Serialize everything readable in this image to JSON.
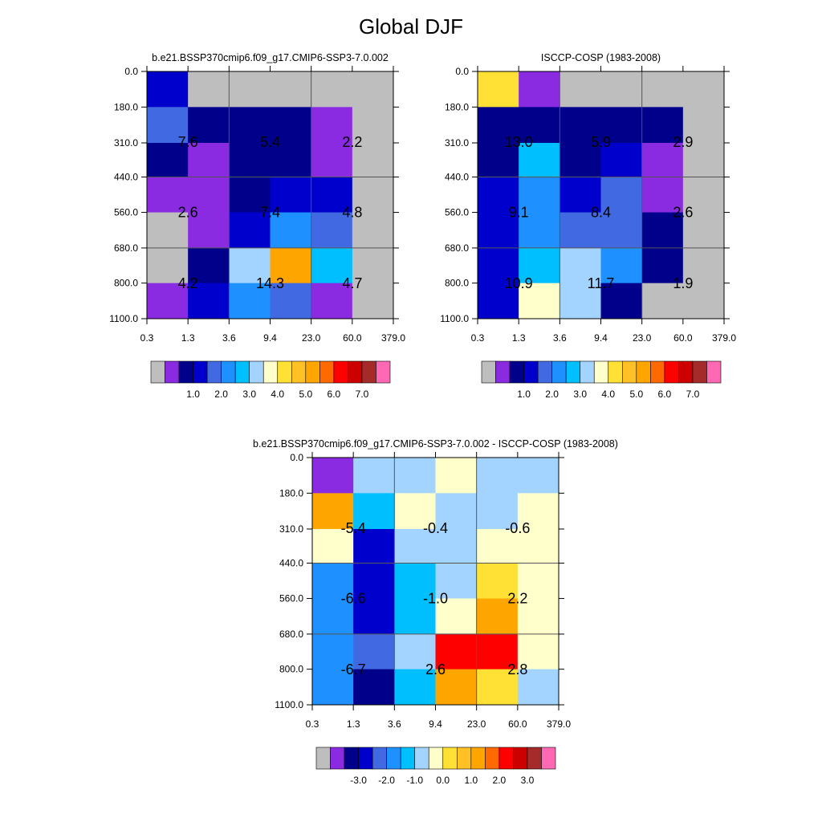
{
  "figure_title": "Global DJF",
  "chart_data": [
    {
      "type": "heatmap",
      "title": "b.e21.BSSP370cmip6.f09_g17.CMIP6-SSP3-7.0.002",
      "x_ticks": [
        "0.3",
        "1.3",
        "3.6",
        "9.4",
        "23.0",
        "60.0",
        "379.0"
      ],
      "y_ticks": [
        "0.0",
        "180.0",
        "310.0",
        "440.0",
        "560.0",
        "680.0",
        "800.0",
        "1100.0"
      ],
      "cells": [
        [
          "#0000cd",
          "#bebebe",
          "#bebebe",
          "#bebebe",
          "#bebebe",
          "#bebebe"
        ],
        [
          "#4169e1",
          "#00008b",
          "#00008b",
          "#00008b",
          "#8a2be2",
          "#bebebe"
        ],
        [
          "#00008b",
          "#8a2be2",
          "#00008b",
          "#00008b",
          "#8a2be2",
          "#bebebe"
        ],
        [
          "#8a2be2",
          "#8a2be2",
          "#00008b",
          "#0000cd",
          "#0000cd",
          "#bebebe"
        ],
        [
          "#bebebe",
          "#8a2be2",
          "#0000cd",
          "#1e90ff",
          "#4169e1",
          "#bebebe"
        ],
        [
          "#bebebe",
          "#00008b",
          "#a3d4ff",
          "#ffa500",
          "#00bfff",
          "#bebebe"
        ],
        [
          "#8a2be2",
          "#0000cd",
          "#1e90ff",
          "#4169e1",
          "#8a2be2",
          "#bebebe"
        ]
      ],
      "boxes": [
        {
          "x0": 0,
          "x1": 2,
          "y0": 1,
          "y1": 3,
          "label": "7.6"
        },
        {
          "x0": 2,
          "x1": 4,
          "y0": 1,
          "y1": 3,
          "label": "5.4"
        },
        {
          "x0": 4,
          "x1": 6,
          "y0": 1,
          "y1": 3,
          "label": "2.2"
        },
        {
          "x0": 0,
          "x1": 2,
          "y0": 3,
          "y1": 5,
          "label": "2.6"
        },
        {
          "x0": 2,
          "x1": 4,
          "y0": 3,
          "y1": 5,
          "label": "7.4"
        },
        {
          "x0": 4,
          "x1": 6,
          "y0": 3,
          "y1": 5,
          "label": "4.8"
        },
        {
          "x0": 0,
          "x1": 2,
          "y0": 5,
          "y1": 7,
          "label": "4.2"
        },
        {
          "x0": 2,
          "x1": 4,
          "y0": 5,
          "y1": 7,
          "label": "14.3"
        },
        {
          "x0": 4,
          "x1": 6,
          "y0": 5,
          "y1": 7,
          "label": "4.7"
        }
      ],
      "colorbar": {
        "colors": [
          "#bebebe",
          "#8a2be2",
          "#00008b",
          "#0000cd",
          "#4169e1",
          "#1e90ff",
          "#00bfff",
          "#a3d4ff",
          "#ffffcc",
          "#ffe135",
          "#ffc125",
          "#ffa500",
          "#ff6a00",
          "#ff0000",
          "#cd0000",
          "#a52a2a",
          "#ff69b4"
        ],
        "labels": [
          "1.0",
          "2.0",
          "3.0",
          "4.0",
          "5.0",
          "6.0",
          "7.0"
        ]
      }
    },
    {
      "type": "heatmap",
      "title": "ISCCP-COSP (1983-2008)",
      "x_ticks": [
        "0.3",
        "1.3",
        "3.6",
        "9.4",
        "23.0",
        "60.0",
        "379.0"
      ],
      "y_ticks": [
        "0.0",
        "180.0",
        "310.0",
        "440.0",
        "560.0",
        "680.0",
        "800.0",
        "1100.0"
      ],
      "cells": [
        [
          "#ffe135",
          "#8a2be2",
          "#bebebe",
          "#bebebe",
          "#bebebe",
          "#bebebe"
        ],
        [
          "#00008b",
          "#00008b",
          "#00008b",
          "#00008b",
          "#00008b",
          "#bebebe"
        ],
        [
          "#00008b",
          "#00bfff",
          "#00008b",
          "#0000cd",
          "#8a2be2",
          "#bebebe"
        ],
        [
          "#0000cd",
          "#1e90ff",
          "#0000cd",
          "#4169e1",
          "#8a2be2",
          "#bebebe"
        ],
        [
          "#0000cd",
          "#1e90ff",
          "#4169e1",
          "#4169e1",
          "#00008b",
          "#bebebe"
        ],
        [
          "#0000cd",
          "#00bfff",
          "#a3d4ff",
          "#1e90ff",
          "#00008b",
          "#bebebe"
        ],
        [
          "#0000cd",
          "#ffffcc",
          "#a3d4ff",
          "#00008b",
          "#bebebe",
          "#bebebe"
        ]
      ],
      "boxes": [
        {
          "x0": 0,
          "x1": 2,
          "y0": 1,
          "y1": 3,
          "label": "13.0"
        },
        {
          "x0": 2,
          "x1": 4,
          "y0": 1,
          "y1": 3,
          "label": "5.9"
        },
        {
          "x0": 4,
          "x1": 6,
          "y0": 1,
          "y1": 3,
          "label": "2.9"
        },
        {
          "x0": 0,
          "x1": 2,
          "y0": 3,
          "y1": 5,
          "label": "9.1"
        },
        {
          "x0": 2,
          "x1": 4,
          "y0": 3,
          "y1": 5,
          "label": "8.4"
        },
        {
          "x0": 4,
          "x1": 6,
          "y0": 3,
          "y1": 5,
          "label": "2.6"
        },
        {
          "x0": 0,
          "x1": 2,
          "y0": 5,
          "y1": 7,
          "label": "10.9"
        },
        {
          "x0": 2,
          "x1": 4,
          "y0": 5,
          "y1": 7,
          "label": "11.7"
        },
        {
          "x0": 4,
          "x1": 6,
          "y0": 5,
          "y1": 7,
          "label": "1.9"
        }
      ],
      "colorbar": {
        "colors": [
          "#bebebe",
          "#8a2be2",
          "#00008b",
          "#0000cd",
          "#4169e1",
          "#1e90ff",
          "#00bfff",
          "#a3d4ff",
          "#ffffcc",
          "#ffe135",
          "#ffc125",
          "#ffa500",
          "#ff6a00",
          "#ff0000",
          "#cd0000",
          "#a52a2a",
          "#ff69b4"
        ],
        "labels": [
          "1.0",
          "2.0",
          "3.0",
          "4.0",
          "5.0",
          "6.0",
          "7.0"
        ]
      }
    },
    {
      "type": "heatmap",
      "title": "b.e21.BSSP370cmip6.f09_g17.CMIP6-SSP3-7.0.002 - ISCCP-COSP (1983-2008)",
      "x_ticks": [
        "0.3",
        "1.3",
        "3.6",
        "9.4",
        "23.0",
        "60.0",
        "379.0"
      ],
      "y_ticks": [
        "0.0",
        "180.0",
        "310.0",
        "440.0",
        "560.0",
        "680.0",
        "800.0",
        "1100.0"
      ],
      "cells": [
        [
          "#8a2be2",
          "#a3d4ff",
          "#a3d4ff",
          "#ffffcc",
          "#a3d4ff",
          "#a3d4ff"
        ],
        [
          "#ffa500",
          "#00bfff",
          "#ffffcc",
          "#a3d4ff",
          "#a3d4ff",
          "#ffffcc"
        ],
        [
          "#ffffcc",
          "#0000cd",
          "#a3d4ff",
          "#a3d4ff",
          "#ffffcc",
          "#ffffcc"
        ],
        [
          "#1e90ff",
          "#0000cd",
          "#00bfff",
          "#a3d4ff",
          "#ffe135",
          "#ffffcc"
        ],
        [
          "#1e90ff",
          "#0000cd",
          "#00bfff",
          "#ffffcc",
          "#ffa500",
          "#ffffcc"
        ],
        [
          "#1e90ff",
          "#4169e1",
          "#a3d4ff",
          "#ff0000",
          "#ff0000",
          "#ffffcc"
        ],
        [
          "#1e90ff",
          "#00008b",
          "#00bfff",
          "#ffa500",
          "#ffe135",
          "#a3d4ff"
        ]
      ],
      "boxes": [
        {
          "x0": 0,
          "x1": 2,
          "y0": 1,
          "y1": 3,
          "label": "-5.4"
        },
        {
          "x0": 2,
          "x1": 4,
          "y0": 1,
          "y1": 3,
          "label": "-0.4"
        },
        {
          "x0": 4,
          "x1": 6,
          "y0": 1,
          "y1": 3,
          "label": "-0.6"
        },
        {
          "x0": 0,
          "x1": 2,
          "y0": 3,
          "y1": 5,
          "label": "-6.6"
        },
        {
          "x0": 2,
          "x1": 4,
          "y0": 3,
          "y1": 5,
          "label": "-1.0"
        },
        {
          "x0": 4,
          "x1": 6,
          "y0": 3,
          "y1": 5,
          "label": "2.2"
        },
        {
          "x0": 0,
          "x1": 2,
          "y0": 5,
          "y1": 7,
          "label": "-6.7"
        },
        {
          "x0": 2,
          "x1": 4,
          "y0": 5,
          "y1": 7,
          "label": "2.6"
        },
        {
          "x0": 4,
          "x1": 6,
          "y0": 5,
          "y1": 7,
          "label": "2.8"
        }
      ],
      "colorbar": {
        "colors": [
          "#bebebe",
          "#8a2be2",
          "#00008b",
          "#0000cd",
          "#4169e1",
          "#1e90ff",
          "#00bfff",
          "#a3d4ff",
          "#ffffcc",
          "#ffe135",
          "#ffc125",
          "#ffa500",
          "#ff6a00",
          "#ff0000",
          "#cd0000",
          "#a52a2a",
          "#ff69b4"
        ],
        "labels": [
          "-3.0",
          "-2.0",
          "-1.0",
          "0.0",
          "1.0",
          "2.0",
          "3.0"
        ]
      }
    }
  ]
}
